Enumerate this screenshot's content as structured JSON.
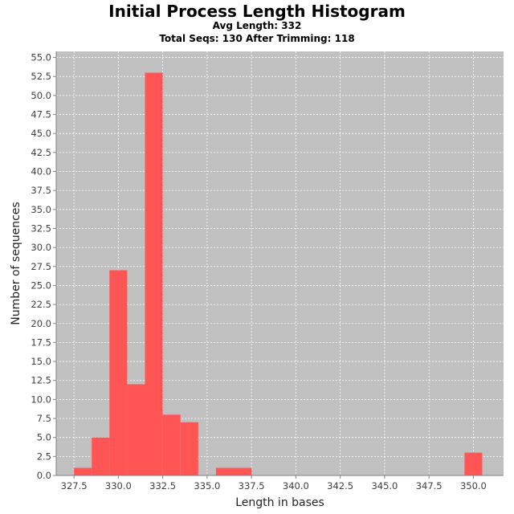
{
  "chart_data": {
    "type": "bar",
    "title": "Initial Process Length Histogram",
    "subtitles": [
      "Avg Length: 332",
      "Total Seqs: 130 After Trimming: 118"
    ],
    "xlabel": "Length in bases",
    "ylabel": "Number of sequences",
    "xlim": [
      326.5,
      351.7
    ],
    "ylim": [
      0,
      55.8
    ],
    "xticks": [
      "327.5",
      "330.0",
      "332.5",
      "335.0",
      "337.5",
      "340.0",
      "342.5",
      "345.0",
      "347.5",
      "350.0"
    ],
    "yticks": [
      "0.0",
      "2.5",
      "5.0",
      "7.5",
      "10.0",
      "12.5",
      "15.0",
      "17.5",
      "20.0",
      "22.5",
      "25.0",
      "27.5",
      "30.0",
      "32.5",
      "35.0",
      "37.5",
      "40.0",
      "42.5",
      "45.0",
      "47.5",
      "50.0",
      "52.5",
      "55.0"
    ],
    "bars": [
      {
        "x0": 327.5,
        "x1": 328.5,
        "value": 1
      },
      {
        "x0": 328.5,
        "x1": 329.5,
        "value": 5
      },
      {
        "x0": 329.5,
        "x1": 330.5,
        "value": 27
      },
      {
        "x0": 330.5,
        "x1": 331.5,
        "value": 12
      },
      {
        "x0": 331.5,
        "x1": 332.5,
        "value": 53
      },
      {
        "x0": 332.5,
        "x1": 333.5,
        "value": 8
      },
      {
        "x0": 333.5,
        "x1": 334.5,
        "value": 7
      },
      {
        "x0": 335.5,
        "x1": 337.5,
        "value": 1
      },
      {
        "x0": 349.5,
        "x1": 350.5,
        "value": 3
      }
    ],
    "grid": true,
    "colors": {
      "bar": "#ff5555",
      "plot_bg": "#c0c0c0",
      "grid": "#ffffff"
    }
  }
}
